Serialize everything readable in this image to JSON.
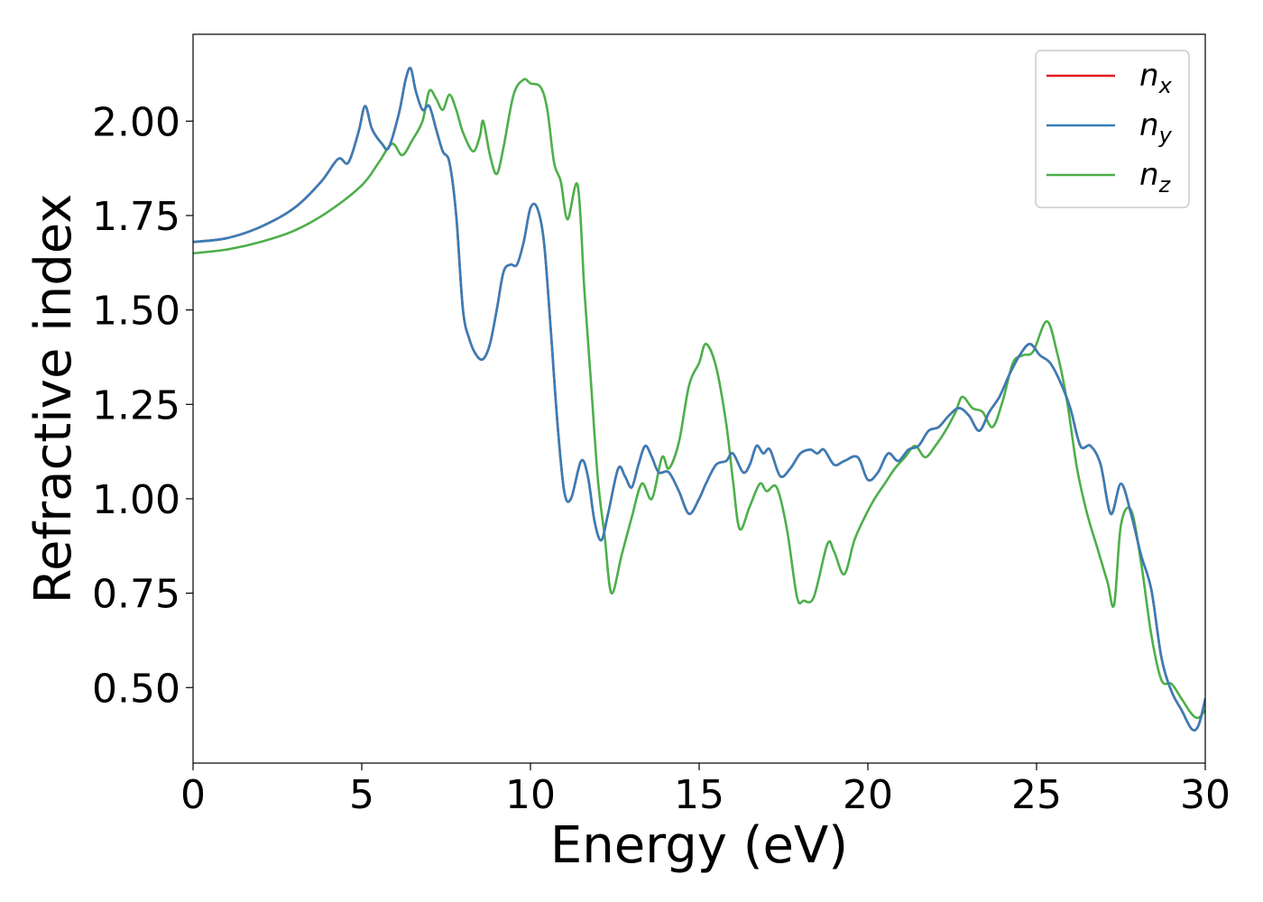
{
  "chart_data": {
    "type": "line",
    "title": "",
    "xlabel": "Energy (eV)",
    "ylabel": "Refractive index",
    "xlim": [
      0,
      30
    ],
    "ylim": [
      0.3,
      2.23
    ],
    "xticks": [
      0,
      5,
      10,
      15,
      20,
      25,
      30
    ],
    "xtick_labels": [
      "0",
      "5",
      "10",
      "15",
      "20",
      "25",
      "30"
    ],
    "yticks": [
      0.5,
      0.75,
      1.0,
      1.25,
      1.5,
      1.75,
      2.0
    ],
    "ytick_labels": [
      "0.50",
      "0.75",
      "1.00",
      "1.25",
      "1.50",
      "1.75",
      "2.00"
    ],
    "grid": false,
    "legend_position": "top-right",
    "series": [
      {
        "name": "n",
        "subscript": "x",
        "color": "#e41a1c",
        "points": [
          [
            0,
            1.68
          ],
          [
            1,
            1.69
          ],
          [
            2,
            1.72
          ],
          [
            3,
            1.77
          ],
          [
            3.8,
            1.84
          ],
          [
            4.3,
            1.9
          ],
          [
            4.6,
            1.89
          ],
          [
            4.9,
            1.97
          ],
          [
            5.1,
            2.04
          ],
          [
            5.3,
            1.98
          ],
          [
            5.6,
            1.94
          ],
          [
            5.8,
            1.93
          ],
          [
            6.1,
            2.02
          ],
          [
            6.3,
            2.11
          ],
          [
            6.45,
            2.14
          ],
          [
            6.6,
            2.08
          ],
          [
            6.8,
            2.03
          ],
          [
            7.0,
            2.04
          ],
          [
            7.2,
            1.98
          ],
          [
            7.4,
            1.92
          ],
          [
            7.6,
            1.89
          ],
          [
            7.8,
            1.75
          ],
          [
            8.0,
            1.5
          ],
          [
            8.2,
            1.42
          ],
          [
            8.4,
            1.38
          ],
          [
            8.6,
            1.37
          ],
          [
            8.8,
            1.41
          ],
          [
            9.0,
            1.5
          ],
          [
            9.2,
            1.6
          ],
          [
            9.4,
            1.62
          ],
          [
            9.6,
            1.62
          ],
          [
            9.8,
            1.68
          ],
          [
            10.0,
            1.77
          ],
          [
            10.2,
            1.77
          ],
          [
            10.4,
            1.68
          ],
          [
            10.6,
            1.45
          ],
          [
            10.8,
            1.2
          ],
          [
            11.0,
            1.02
          ],
          [
            11.2,
            1.0
          ],
          [
            11.5,
            1.1
          ],
          [
            11.7,
            1.06
          ],
          [
            11.9,
            0.94
          ],
          [
            12.1,
            0.89
          ],
          [
            12.3,
            0.96
          ],
          [
            12.6,
            1.08
          ],
          [
            12.8,
            1.06
          ],
          [
            13.0,
            1.03
          ],
          [
            13.2,
            1.09
          ],
          [
            13.4,
            1.14
          ],
          [
            13.6,
            1.11
          ],
          [
            13.8,
            1.07
          ],
          [
            14.1,
            1.07
          ],
          [
            14.4,
            1.02
          ],
          [
            14.7,
            0.96
          ],
          [
            15.0,
            1.0
          ],
          [
            15.2,
            1.04
          ],
          [
            15.5,
            1.09
          ],
          [
            15.8,
            1.1
          ],
          [
            16.0,
            1.12
          ],
          [
            16.3,
            1.07
          ],
          [
            16.5,
            1.09
          ],
          [
            16.7,
            1.14
          ],
          [
            16.9,
            1.12
          ],
          [
            17.1,
            1.13
          ],
          [
            17.4,
            1.06
          ],
          [
            17.7,
            1.08
          ],
          [
            18.0,
            1.12
          ],
          [
            18.3,
            1.13
          ],
          [
            18.5,
            1.12
          ],
          [
            18.7,
            1.13
          ],
          [
            19.0,
            1.09
          ],
          [
            19.3,
            1.1
          ],
          [
            19.7,
            1.11
          ],
          [
            20.0,
            1.05
          ],
          [
            20.3,
            1.07
          ],
          [
            20.6,
            1.12
          ],
          [
            20.9,
            1.1
          ],
          [
            21.2,
            1.13
          ],
          [
            21.5,
            1.14
          ],
          [
            21.8,
            1.18
          ],
          [
            22.1,
            1.19
          ],
          [
            22.4,
            1.22
          ],
          [
            22.7,
            1.24
          ],
          [
            23.0,
            1.22
          ],
          [
            23.3,
            1.18
          ],
          [
            23.6,
            1.23
          ],
          [
            23.9,
            1.27
          ],
          [
            24.2,
            1.33
          ],
          [
            24.5,
            1.38
          ],
          [
            24.8,
            1.41
          ],
          [
            25.1,
            1.38
          ],
          [
            25.4,
            1.36
          ],
          [
            25.7,
            1.31
          ],
          [
            26.0,
            1.24
          ],
          [
            26.3,
            1.14
          ],
          [
            26.6,
            1.14
          ],
          [
            26.9,
            1.09
          ],
          [
            27.2,
            0.96
          ],
          [
            27.5,
            1.04
          ],
          [
            27.8,
            0.96
          ],
          [
            28.1,
            0.85
          ],
          [
            28.4,
            0.76
          ],
          [
            28.7,
            0.58
          ],
          [
            29.0,
            0.49
          ],
          [
            29.3,
            0.44
          ],
          [
            29.6,
            0.39
          ],
          [
            29.8,
            0.4
          ],
          [
            30.0,
            0.47
          ]
        ]
      },
      {
        "name": "n",
        "subscript": "y",
        "color": "#377eb8",
        "points": [
          [
            0,
            1.68
          ],
          [
            1,
            1.69
          ],
          [
            2,
            1.72
          ],
          [
            3,
            1.77
          ],
          [
            3.8,
            1.84
          ],
          [
            4.3,
            1.9
          ],
          [
            4.6,
            1.89
          ],
          [
            4.9,
            1.97
          ],
          [
            5.1,
            2.04
          ],
          [
            5.3,
            1.98
          ],
          [
            5.6,
            1.94
          ],
          [
            5.8,
            1.93
          ],
          [
            6.1,
            2.02
          ],
          [
            6.3,
            2.11
          ],
          [
            6.45,
            2.14
          ],
          [
            6.6,
            2.08
          ],
          [
            6.8,
            2.03
          ],
          [
            7.0,
            2.04
          ],
          [
            7.2,
            1.98
          ],
          [
            7.4,
            1.92
          ],
          [
            7.6,
            1.89
          ],
          [
            7.8,
            1.75
          ],
          [
            8.0,
            1.5
          ],
          [
            8.2,
            1.42
          ],
          [
            8.4,
            1.38
          ],
          [
            8.6,
            1.37
          ],
          [
            8.8,
            1.41
          ],
          [
            9.0,
            1.5
          ],
          [
            9.2,
            1.6
          ],
          [
            9.4,
            1.62
          ],
          [
            9.6,
            1.62
          ],
          [
            9.8,
            1.68
          ],
          [
            10.0,
            1.77
          ],
          [
            10.2,
            1.77
          ],
          [
            10.4,
            1.68
          ],
          [
            10.6,
            1.45
          ],
          [
            10.8,
            1.2
          ],
          [
            11.0,
            1.02
          ],
          [
            11.2,
            1.0
          ],
          [
            11.5,
            1.1
          ],
          [
            11.7,
            1.06
          ],
          [
            11.9,
            0.94
          ],
          [
            12.1,
            0.89
          ],
          [
            12.3,
            0.96
          ],
          [
            12.6,
            1.08
          ],
          [
            12.8,
            1.06
          ],
          [
            13.0,
            1.03
          ],
          [
            13.2,
            1.09
          ],
          [
            13.4,
            1.14
          ],
          [
            13.6,
            1.11
          ],
          [
            13.8,
            1.07
          ],
          [
            14.1,
            1.07
          ],
          [
            14.4,
            1.02
          ],
          [
            14.7,
            0.96
          ],
          [
            15.0,
            1.0
          ],
          [
            15.2,
            1.04
          ],
          [
            15.5,
            1.09
          ],
          [
            15.8,
            1.1
          ],
          [
            16.0,
            1.12
          ],
          [
            16.3,
            1.07
          ],
          [
            16.5,
            1.09
          ],
          [
            16.7,
            1.14
          ],
          [
            16.9,
            1.12
          ],
          [
            17.1,
            1.13
          ],
          [
            17.4,
            1.06
          ],
          [
            17.7,
            1.08
          ],
          [
            18.0,
            1.12
          ],
          [
            18.3,
            1.13
          ],
          [
            18.5,
            1.12
          ],
          [
            18.7,
            1.13
          ],
          [
            19.0,
            1.09
          ],
          [
            19.3,
            1.1
          ],
          [
            19.7,
            1.11
          ],
          [
            20.0,
            1.05
          ],
          [
            20.3,
            1.07
          ],
          [
            20.6,
            1.12
          ],
          [
            20.9,
            1.1
          ],
          [
            21.2,
            1.13
          ],
          [
            21.5,
            1.14
          ],
          [
            21.8,
            1.18
          ],
          [
            22.1,
            1.19
          ],
          [
            22.4,
            1.22
          ],
          [
            22.7,
            1.24
          ],
          [
            23.0,
            1.22
          ],
          [
            23.3,
            1.18
          ],
          [
            23.6,
            1.23
          ],
          [
            23.9,
            1.27
          ],
          [
            24.2,
            1.33
          ],
          [
            24.5,
            1.38
          ],
          [
            24.8,
            1.41
          ],
          [
            25.1,
            1.38
          ],
          [
            25.4,
            1.36
          ],
          [
            25.7,
            1.31
          ],
          [
            26.0,
            1.24
          ],
          [
            26.3,
            1.14
          ],
          [
            26.6,
            1.14
          ],
          [
            26.9,
            1.09
          ],
          [
            27.2,
            0.96
          ],
          [
            27.5,
            1.04
          ],
          [
            27.8,
            0.96
          ],
          [
            28.1,
            0.85
          ],
          [
            28.4,
            0.76
          ],
          [
            28.7,
            0.58
          ],
          [
            29.0,
            0.49
          ],
          [
            29.3,
            0.44
          ],
          [
            29.6,
            0.39
          ],
          [
            29.8,
            0.4
          ],
          [
            30.0,
            0.47
          ]
        ]
      },
      {
        "name": "n",
        "subscript": "z",
        "color": "#4daf4a",
        "points": [
          [
            0,
            1.65
          ],
          [
            1,
            1.66
          ],
          [
            2,
            1.68
          ],
          [
            3,
            1.71
          ],
          [
            4,
            1.76
          ],
          [
            5,
            1.83
          ],
          [
            5.5,
            1.89
          ],
          [
            5.9,
            1.94
          ],
          [
            6.2,
            1.91
          ],
          [
            6.5,
            1.95
          ],
          [
            6.8,
            2.0
          ],
          [
            7.0,
            2.08
          ],
          [
            7.2,
            2.06
          ],
          [
            7.4,
            2.03
          ],
          [
            7.6,
            2.07
          ],
          [
            7.8,
            2.03
          ],
          [
            8.0,
            1.97
          ],
          [
            8.3,
            1.92
          ],
          [
            8.5,
            1.96
          ],
          [
            8.6,
            2.0
          ],
          [
            8.8,
            1.91
          ],
          [
            9.0,
            1.86
          ],
          [
            9.2,
            1.93
          ],
          [
            9.5,
            2.07
          ],
          [
            9.8,
            2.11
          ],
          [
            10.0,
            2.1
          ],
          [
            10.3,
            2.09
          ],
          [
            10.5,
            2.03
          ],
          [
            10.7,
            1.89
          ],
          [
            10.9,
            1.84
          ],
          [
            11.1,
            1.74
          ],
          [
            11.4,
            1.83
          ],
          [
            11.6,
            1.55
          ],
          [
            11.8,
            1.3
          ],
          [
            12.0,
            1.05
          ],
          [
            12.2,
            0.9
          ],
          [
            12.4,
            0.75
          ],
          [
            12.7,
            0.85
          ],
          [
            13.0,
            0.95
          ],
          [
            13.3,
            1.04
          ],
          [
            13.6,
            1.0
          ],
          [
            13.9,
            1.11
          ],
          [
            14.1,
            1.08
          ],
          [
            14.4,
            1.15
          ],
          [
            14.7,
            1.3
          ],
          [
            15.0,
            1.36
          ],
          [
            15.2,
            1.41
          ],
          [
            15.5,
            1.35
          ],
          [
            15.8,
            1.2
          ],
          [
            16.0,
            1.05
          ],
          [
            16.2,
            0.92
          ],
          [
            16.5,
            0.98
          ],
          [
            16.8,
            1.04
          ],
          [
            17.0,
            1.02
          ],
          [
            17.3,
            1.03
          ],
          [
            17.6,
            0.92
          ],
          [
            17.9,
            0.74
          ],
          [
            18.1,
            0.73
          ],
          [
            18.4,
            0.74
          ],
          [
            18.8,
            0.88
          ],
          [
            19.0,
            0.86
          ],
          [
            19.3,
            0.8
          ],
          [
            19.6,
            0.89
          ],
          [
            19.9,
            0.95
          ],
          [
            20.2,
            1.0
          ],
          [
            20.5,
            1.04
          ],
          [
            20.8,
            1.08
          ],
          [
            21.1,
            1.11
          ],
          [
            21.4,
            1.14
          ],
          [
            21.7,
            1.11
          ],
          [
            22.0,
            1.14
          ],
          [
            22.3,
            1.18
          ],
          [
            22.6,
            1.23
          ],
          [
            22.8,
            1.27
          ],
          [
            23.1,
            1.24
          ],
          [
            23.4,
            1.23
          ],
          [
            23.7,
            1.19
          ],
          [
            24.0,
            1.26
          ],
          [
            24.3,
            1.36
          ],
          [
            24.6,
            1.38
          ],
          [
            24.9,
            1.39
          ],
          [
            25.3,
            1.47
          ],
          [
            25.6,
            1.39
          ],
          [
            25.9,
            1.26
          ],
          [
            26.2,
            1.08
          ],
          [
            26.5,
            0.96
          ],
          [
            26.8,
            0.87
          ],
          [
            27.1,
            0.78
          ],
          [
            27.3,
            0.72
          ],
          [
            27.5,
            0.93
          ],
          [
            27.8,
            0.97
          ],
          [
            28.1,
            0.83
          ],
          [
            28.4,
            0.64
          ],
          [
            28.7,
            0.52
          ],
          [
            29.0,
            0.51
          ],
          [
            29.3,
            0.47
          ],
          [
            29.6,
            0.43
          ],
          [
            29.8,
            0.42
          ],
          [
            30.0,
            0.44
          ]
        ]
      }
    ]
  }
}
